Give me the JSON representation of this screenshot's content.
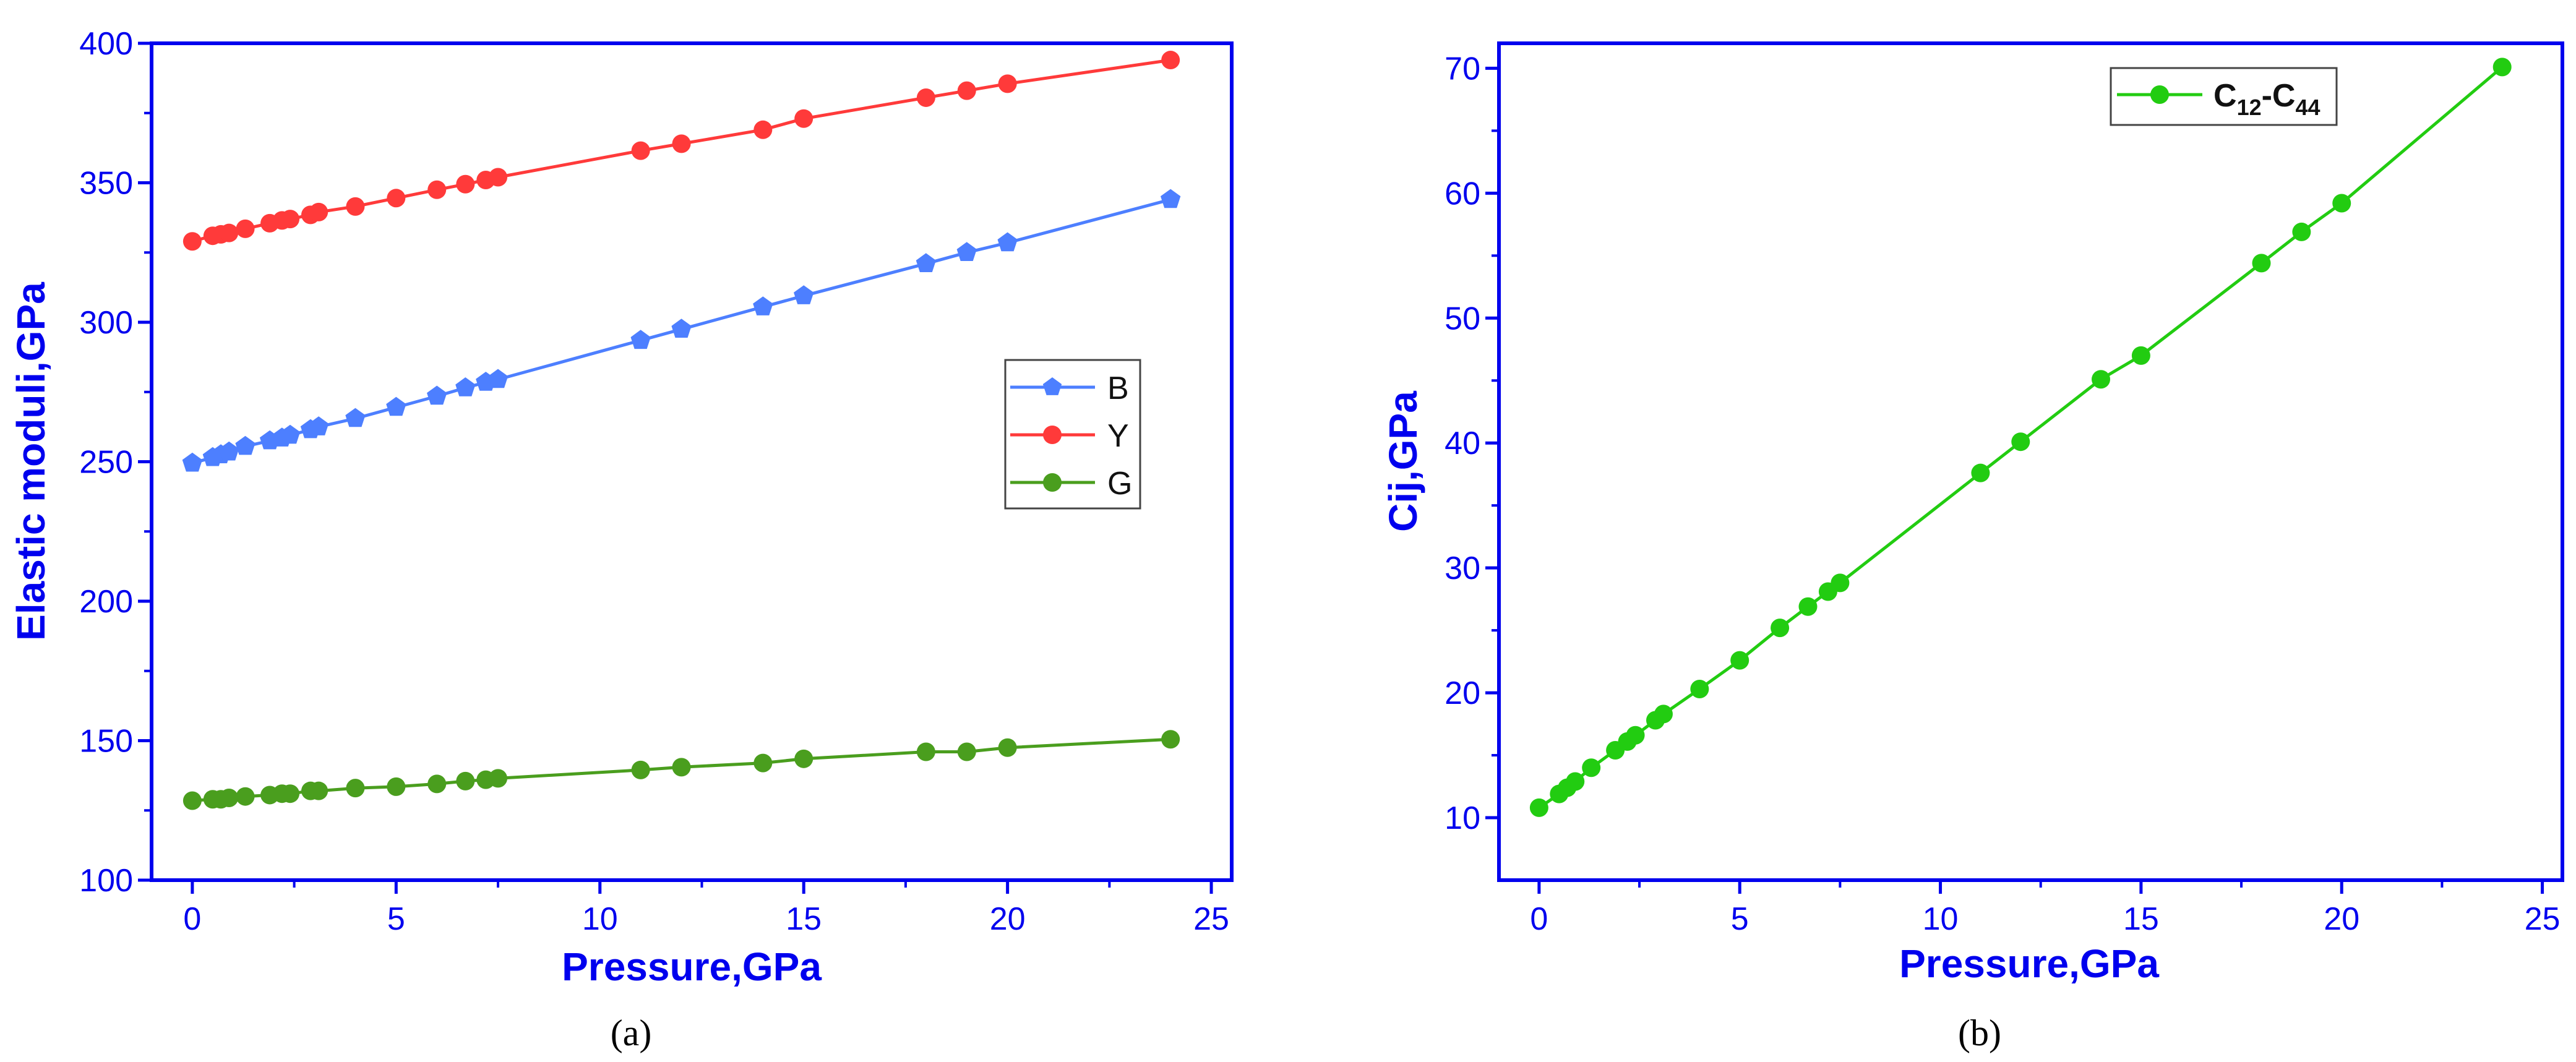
{
  "chart_data": [
    {
      "type": "line",
      "panel_label": "(a)",
      "xlabel": "Pressure,GPa",
      "ylabel": "Elastic moduli,GPa",
      "xlim": [
        -1,
        25.5
      ],
      "ylim": [
        100,
        400
      ],
      "x_ticks": [
        0,
        5,
        10,
        15,
        20,
        25
      ],
      "y_ticks": [
        100,
        150,
        200,
        250,
        300,
        350,
        400
      ],
      "grid": false,
      "legend_position": "right-middle",
      "x": [
        0,
        0.5,
        0.7,
        0.9,
        1.3,
        1.9,
        2.2,
        2.4,
        2.9,
        3.1,
        4,
        5,
        6,
        6.7,
        7.2,
        7.5,
        11,
        12,
        14,
        15,
        18,
        19,
        20,
        24
      ],
      "series": [
        {
          "name": "B",
          "color": "#4d7fff",
          "marker": "pentagon",
          "values": [
            249.5,
            251.5,
            252.5,
            253.5,
            255.5,
            257.5,
            258.5,
            259.5,
            261.5,
            262.5,
            265.5,
            269.5,
            273.5,
            276.5,
            278.5,
            279.5,
            293.5,
            297.5,
            305.5,
            309.5,
            321,
            325,
            328.5,
            344
          ]
        },
        {
          "name": "Y",
          "color": "#ff3a3a",
          "marker": "circle",
          "values": [
            329,
            331,
            331.5,
            332,
            333.5,
            335.5,
            336.5,
            337,
            338.5,
            339.5,
            341.5,
            344.5,
            347.5,
            349.5,
            351,
            352,
            361.5,
            364,
            369,
            373,
            380.5,
            383,
            385.5,
            394
          ]
        },
        {
          "name": "G",
          "color": "#4a9e1e",
          "marker": "circle",
          "values": [
            128.5,
            129,
            129,
            129.5,
            130,
            130.5,
            131,
            131,
            132,
            132,
            133,
            133.5,
            134.5,
            135.5,
            136,
            136.5,
            139.5,
            140.5,
            142,
            143.5,
            146,
            146,
            147.5,
            150.5
          ]
        }
      ]
    },
    {
      "type": "line",
      "panel_label": "(b)",
      "xlabel": "Pressure,GPa",
      "ylabel": "Cij,GPa",
      "xlim": [
        -1,
        25.5
      ],
      "ylim": [
        5,
        72
      ],
      "x_ticks": [
        0,
        5,
        10,
        15,
        20,
        25
      ],
      "y_ticks": [
        10,
        20,
        30,
        40,
        50,
        60,
        70
      ],
      "grid": false,
      "legend_position": "top-right",
      "x": [
        0,
        0.5,
        0.7,
        0.9,
        1.3,
        1.9,
        2.2,
        2.4,
        2.9,
        3.1,
        4,
        5,
        6,
        6.7,
        7.2,
        7.5,
        11,
        12,
        14,
        15,
        18,
        19,
        20,
        24
      ],
      "series": [
        {
          "name": "C12-C44",
          "legend_main": "C",
          "legend_sub1": "12",
          "legend_sep": "-C",
          "legend_sub2": "44",
          "color": "#22cc11",
          "marker": "circle",
          "values": [
            10.8,
            11.9,
            12.4,
            12.9,
            14,
            15.4,
            16.1,
            16.6,
            17.8,
            18.3,
            20.3,
            22.6,
            25.2,
            26.9,
            28.1,
            28.8,
            37.6,
            40.1,
            45.1,
            47,
            54.4,
            56.9,
            59.2,
            70.1
          ]
        }
      ]
    }
  ]
}
